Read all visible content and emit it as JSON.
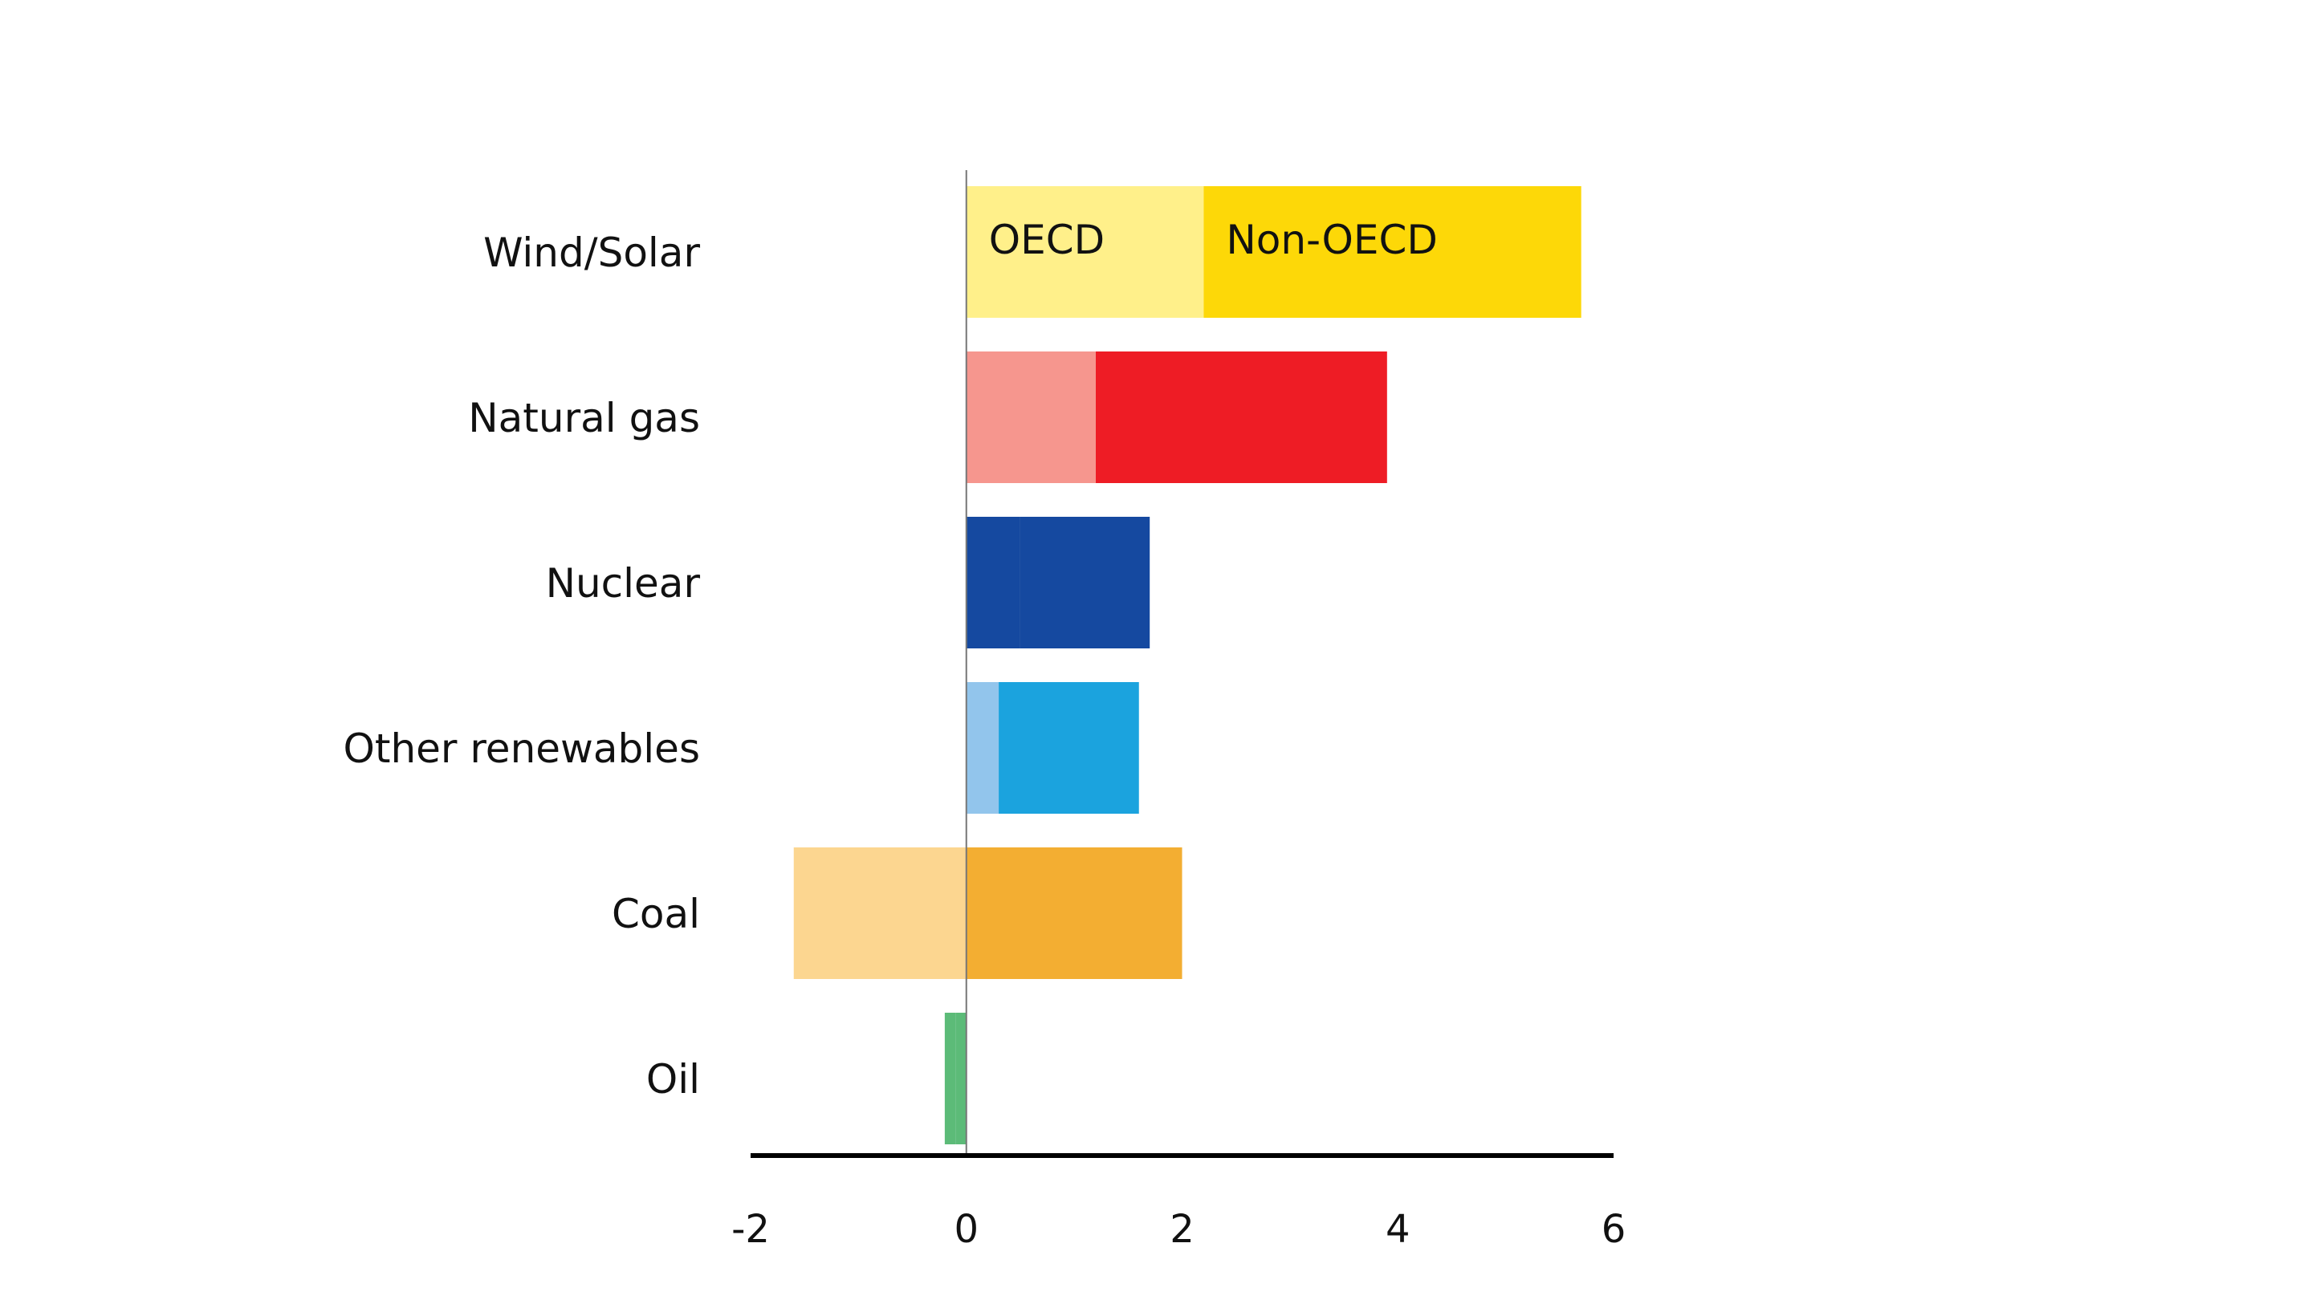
{
  "chart_data": {
    "type": "bar",
    "orientation": "horizontal",
    "stacked": true,
    "categories": [
      "Wind/Solar",
      "Natural gas",
      "Nuclear",
      "Other renewables",
      "Coal",
      "Oil"
    ],
    "series": [
      {
        "name": "OECD",
        "values": [
          2.2,
          1.2,
          0.5,
          0.3,
          -1.6,
          -0.1
        ],
        "colors": [
          "#FFF08A",
          "#F6968E",
          "#1549A0",
          "#92C5EC",
          "#FCD690",
          "#5CBB78"
        ]
      },
      {
        "name": "Non-OECD",
        "values": [
          3.5,
          2.7,
          1.2,
          1.3,
          2.0,
          -0.1
        ],
        "colors": [
          "#FDD808",
          "#EE1C25",
          "#1549A0",
          "#1BA3DE",
          "#F3AE32",
          "#5CBB78"
        ]
      }
    ],
    "xlim": [
      -2,
      6
    ],
    "xticks": [
      "-2",
      "0",
      "2",
      "4",
      "6"
    ],
    "title": "",
    "xlabel": "",
    "ylabel": "",
    "grid": false,
    "legend": "inline labels inside top bar"
  }
}
